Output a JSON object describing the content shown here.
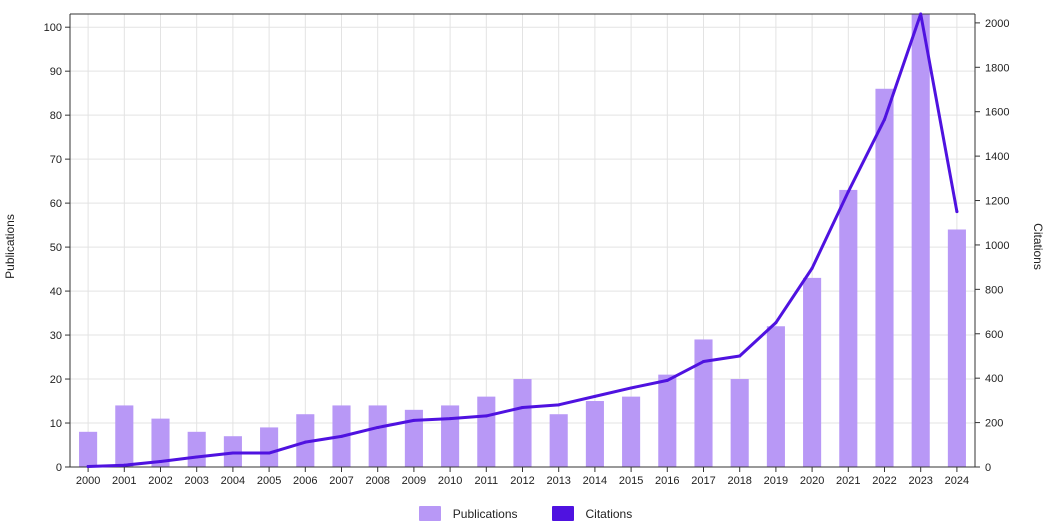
{
  "chart_data": {
    "type": "bar+line",
    "categories": [
      "2000",
      "2001",
      "2002",
      "2003",
      "2004",
      "2005",
      "2006",
      "2007",
      "2008",
      "2009",
      "2010",
      "2011",
      "2012",
      "2013",
      "2014",
      "2015",
      "2016",
      "2017",
      "2018",
      "2019",
      "2020",
      "2021",
      "2022",
      "2023",
      "2024"
    ],
    "series": [
      {
        "name": "Publications",
        "type": "bar",
        "axis": "left",
        "color": "#b898f6",
        "values": [
          8,
          14,
          11,
          8,
          7,
          9,
          12,
          14,
          14,
          13,
          14,
          16,
          20,
          12,
          15,
          16,
          21,
          29,
          20,
          32,
          43,
          63,
          86,
          103,
          54
        ]
      },
      {
        "name": "Citations",
        "type": "line",
        "axis": "right",
        "color": "#4f12e0",
        "values": [
          2,
          8,
          25,
          45,
          63,
          63,
          112,
          138,
          178,
          210,
          218,
          230,
          268,
          280,
          318,
          356,
          390,
          475,
          500,
          650,
          895,
          1240,
          1565,
          2040,
          1150
        ]
      }
    ],
    "ylabel_left": "Publications",
    "ylabel_right": "Citations",
    "ylim_left": [
      0,
      103
    ],
    "ylim_right": [
      0,
      2040
    ],
    "yticks_left": [
      "0",
      "10",
      "20",
      "30",
      "40",
      "50",
      "60",
      "70",
      "80",
      "90",
      "100"
    ],
    "yticks_right": [
      "0",
      "200",
      "400",
      "600",
      "800",
      "1000",
      "1200",
      "1400",
      "1600",
      "1800",
      "2000"
    ],
    "grid": true,
    "legend_position": "bottom-center"
  },
  "legend": {
    "publications_label": "Publications",
    "citations_label": "Citations"
  }
}
